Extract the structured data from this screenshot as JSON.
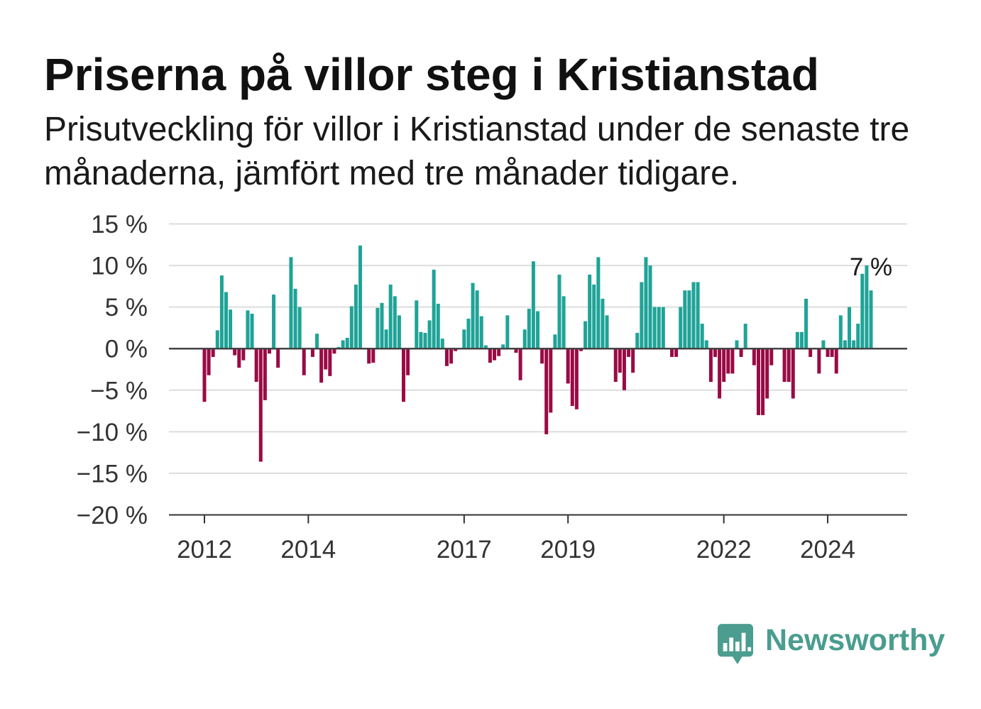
{
  "colors": {
    "positive": "#1fa397",
    "negative": "#990b45",
    "grid": "#dddddd",
    "zero_line": "#444444",
    "axis": "#333333",
    "brand": "#4a9d8f"
  },
  "chart_data": {
    "type": "bar",
    "title": "Priserna på villor steg i Kristianstad",
    "subtitle": "Prisutveckling för villor i Kristianstad under de senaste tre månaderna, jämfört med tre månader tidigare.",
    "ylim": [
      -20,
      15
    ],
    "grid": true,
    "y_ticks": [
      {
        "value": 15,
        "label": "15 %"
      },
      {
        "value": 10,
        "label": "10 %"
      },
      {
        "value": 5,
        "label": "5 %"
      },
      {
        "value": 0,
        "label": "0 %"
      },
      {
        "value": -5,
        "label": "−5 %"
      },
      {
        "value": -10,
        "label": "−10 %"
      },
      {
        "value": -15,
        "label": "−15 %"
      },
      {
        "value": -20,
        "label": "−20 %"
      }
    ],
    "x_ticks": [
      "2012",
      "2014",
      "2017",
      "2019",
      "2022",
      "2024"
    ],
    "x": [
      "2012-01",
      "2012-02",
      "2012-03",
      "2012-04",
      "2012-05",
      "2012-06",
      "2012-07",
      "2012-08",
      "2012-09",
      "2012-10",
      "2012-11",
      "2012-12",
      "2013-01",
      "2013-02",
      "2013-03",
      "2013-04",
      "2013-05",
      "2013-06",
      "2013-07",
      "2013-08",
      "2013-09",
      "2013-10",
      "2013-11",
      "2013-12",
      "2014-01",
      "2014-02",
      "2014-03",
      "2014-04",
      "2014-05",
      "2014-06",
      "2014-07",
      "2014-08",
      "2014-09",
      "2014-10",
      "2014-11",
      "2014-12",
      "2015-01",
      "2015-02",
      "2015-03",
      "2015-04",
      "2015-05",
      "2015-06",
      "2015-07",
      "2015-08",
      "2015-09",
      "2015-10",
      "2015-11",
      "2015-12",
      "2016-01",
      "2016-02",
      "2016-03",
      "2016-04",
      "2016-05",
      "2016-06",
      "2016-07",
      "2016-08",
      "2016-09",
      "2016-10",
      "2016-11",
      "2016-12",
      "2017-01",
      "2017-02",
      "2017-03",
      "2017-04",
      "2017-05",
      "2017-06",
      "2017-07",
      "2017-08",
      "2017-09",
      "2017-10",
      "2017-11",
      "2017-12",
      "2018-01",
      "2018-02",
      "2018-03",
      "2018-04",
      "2018-05",
      "2018-06",
      "2018-07",
      "2018-08",
      "2018-09",
      "2018-10",
      "2018-11",
      "2018-12",
      "2019-01",
      "2019-02",
      "2019-03",
      "2019-04",
      "2019-05",
      "2019-06",
      "2019-07",
      "2019-08",
      "2019-09",
      "2019-10",
      "2019-11",
      "2019-12",
      "2020-01",
      "2020-02",
      "2020-03",
      "2020-04",
      "2020-05",
      "2020-06",
      "2020-07",
      "2020-08",
      "2020-09",
      "2020-10",
      "2020-11",
      "2020-12",
      "2021-01",
      "2021-02",
      "2021-03",
      "2021-04",
      "2021-05",
      "2021-06",
      "2021-07",
      "2021-08",
      "2021-09",
      "2021-10",
      "2021-11",
      "2021-12",
      "2022-01",
      "2022-02",
      "2022-03",
      "2022-04",
      "2022-05",
      "2022-06",
      "2022-07",
      "2022-08",
      "2022-09",
      "2022-10",
      "2022-11",
      "2022-12",
      "2023-01",
      "2023-02",
      "2023-03",
      "2023-04",
      "2023-05",
      "2023-06",
      "2023-07",
      "2023-08",
      "2023-09",
      "2023-10",
      "2023-11",
      "2023-12",
      "2024-01",
      "2024-02",
      "2024-03",
      "2024-04",
      "2024-05",
      "2024-06",
      "2024-07",
      "2024-08",
      "2024-09",
      "2024-10",
      "2024-11"
    ],
    "values": [
      -6.4,
      -3.2,
      -1.0,
      2.2,
      8.8,
      6.8,
      4.7,
      -0.8,
      -2.3,
      -1.4,
      4.6,
      4.2,
      -4.0,
      -13.6,
      -6.2,
      -0.6,
      6.5,
      -2.3,
      0,
      0,
      11.0,
      7.2,
      5.0,
      -3.2,
      0,
      -1.0,
      1.8,
      -4.1,
      -2.5,
      -3.3,
      -0.6,
      0.2,
      1.0,
      1.3,
      5.1,
      7.7,
      12.4,
      0,
      -1.8,
      -1.7,
      4.9,
      5.5,
      2.3,
      7.7,
      6.3,
      4.0,
      -6.4,
      -3.2,
      0,
      5.8,
      2.0,
      1.9,
      3.4,
      9.5,
      5.4,
      1.2,
      -2.1,
      -1.8,
      -0.3,
      0,
      2.3,
      3.6,
      7.9,
      7.0,
      3.9,
      0.4,
      -1.7,
      -1.4,
      -0.9,
      0.5,
      4.0,
      0,
      -0.5,
      -3.8,
      2.3,
      4.8,
      10.5,
      4.5,
      -1.8,
      -10.3,
      -7.7,
      1.7,
      8.9,
      6.3,
      -4.2,
      -6.9,
      -7.3,
      -0.3,
      3.3,
      8.9,
      7.7,
      11.0,
      6.0,
      4.0,
      0,
      -4.0,
      -2.9,
      -5.0,
      -1.0,
      -2.9,
      1.9,
      8.0,
      11.0,
      10.0,
      5.0,
      5.0,
      5.0,
      0,
      -1.0,
      -1.0,
      5.0,
      7.0,
      7.0,
      8.0,
      8.0,
      3.0,
      1.0,
      -4.0,
      -1.0,
      -6.0,
      -4.0,
      -3.0,
      -3.0,
      1.0,
      -1.0,
      3.0,
      0,
      -2.0,
      -8.0,
      -8.0,
      -6.0,
      -2.0,
      0,
      0,
      -4.0,
      -4.0,
      -6.0,
      2.0,
      2.0,
      6.0,
      -1.0,
      0,
      -3.0,
      1.0,
      -1.0,
      -1.0,
      -3.0,
      4.0,
      1.0,
      5.0,
      1.0,
      3.0,
      9.0,
      10.0,
      7.0
    ],
    "annotation": {
      "x": "2024-11",
      "label": "7 %"
    }
  },
  "logo": {
    "icon": "newsworthy-logo-icon",
    "text": "Newsworthy"
  }
}
